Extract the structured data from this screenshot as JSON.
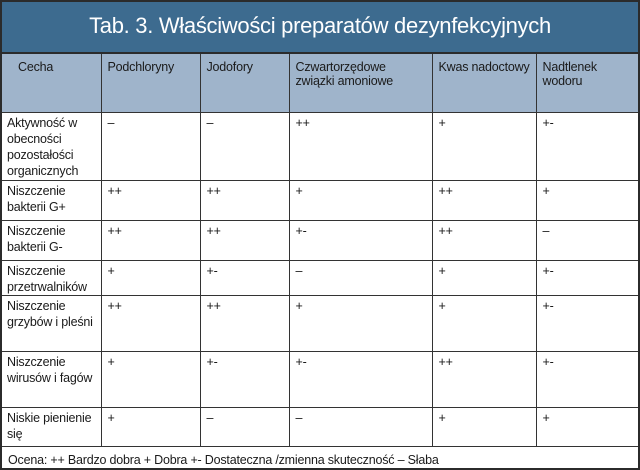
{
  "title": "Tab. 3. Właściwości preparatów dezynfekcyjnych",
  "columns": [
    "Cecha",
    "Podchloryny",
    "Jodofory",
    "Czwartorzędowe związki amoniowe",
    "Kwas nadoctowy",
    "Nadtlenek wodoru"
  ],
  "rows": [
    {
      "feature": "Aktywność w obecności pozostałości organicznych",
      "values": [
        "–",
        "–",
        "++",
        "+",
        "+-"
      ]
    },
    {
      "feature": "Niszczenie bakterii G+",
      "values": [
        "++",
        "++",
        "+",
        "++",
        "+"
      ]
    },
    {
      "feature": "Niszczenie bakterii G-",
      "values": [
        "++",
        "++",
        "+-",
        "++",
        "–"
      ]
    },
    {
      "feature": "Niszczenie przetrwalników",
      "values": [
        "+",
        "+-",
        "–",
        "+",
        "+-"
      ]
    },
    {
      "feature": "Niszczenie grzybów i pleśni",
      "values": [
        "++",
        "++",
        "+",
        "+",
        "+-"
      ]
    },
    {
      "feature": "Niszczenie wirusów i fagów",
      "values": [
        "+",
        "+-",
        "+-",
        "++",
        "+-"
      ]
    },
    {
      "feature": "Niskie pienienie się",
      "values": [
        "+",
        "–",
        "–",
        "+",
        "+"
      ]
    }
  ],
  "legend": "Ocena: ++ Bardzo dobra + Dobra +- Dostateczna /zmienna skuteczność – Słaba",
  "colors": {
    "title_bg": "#3d6b8f",
    "header_bg": "#9fb4cb"
  }
}
